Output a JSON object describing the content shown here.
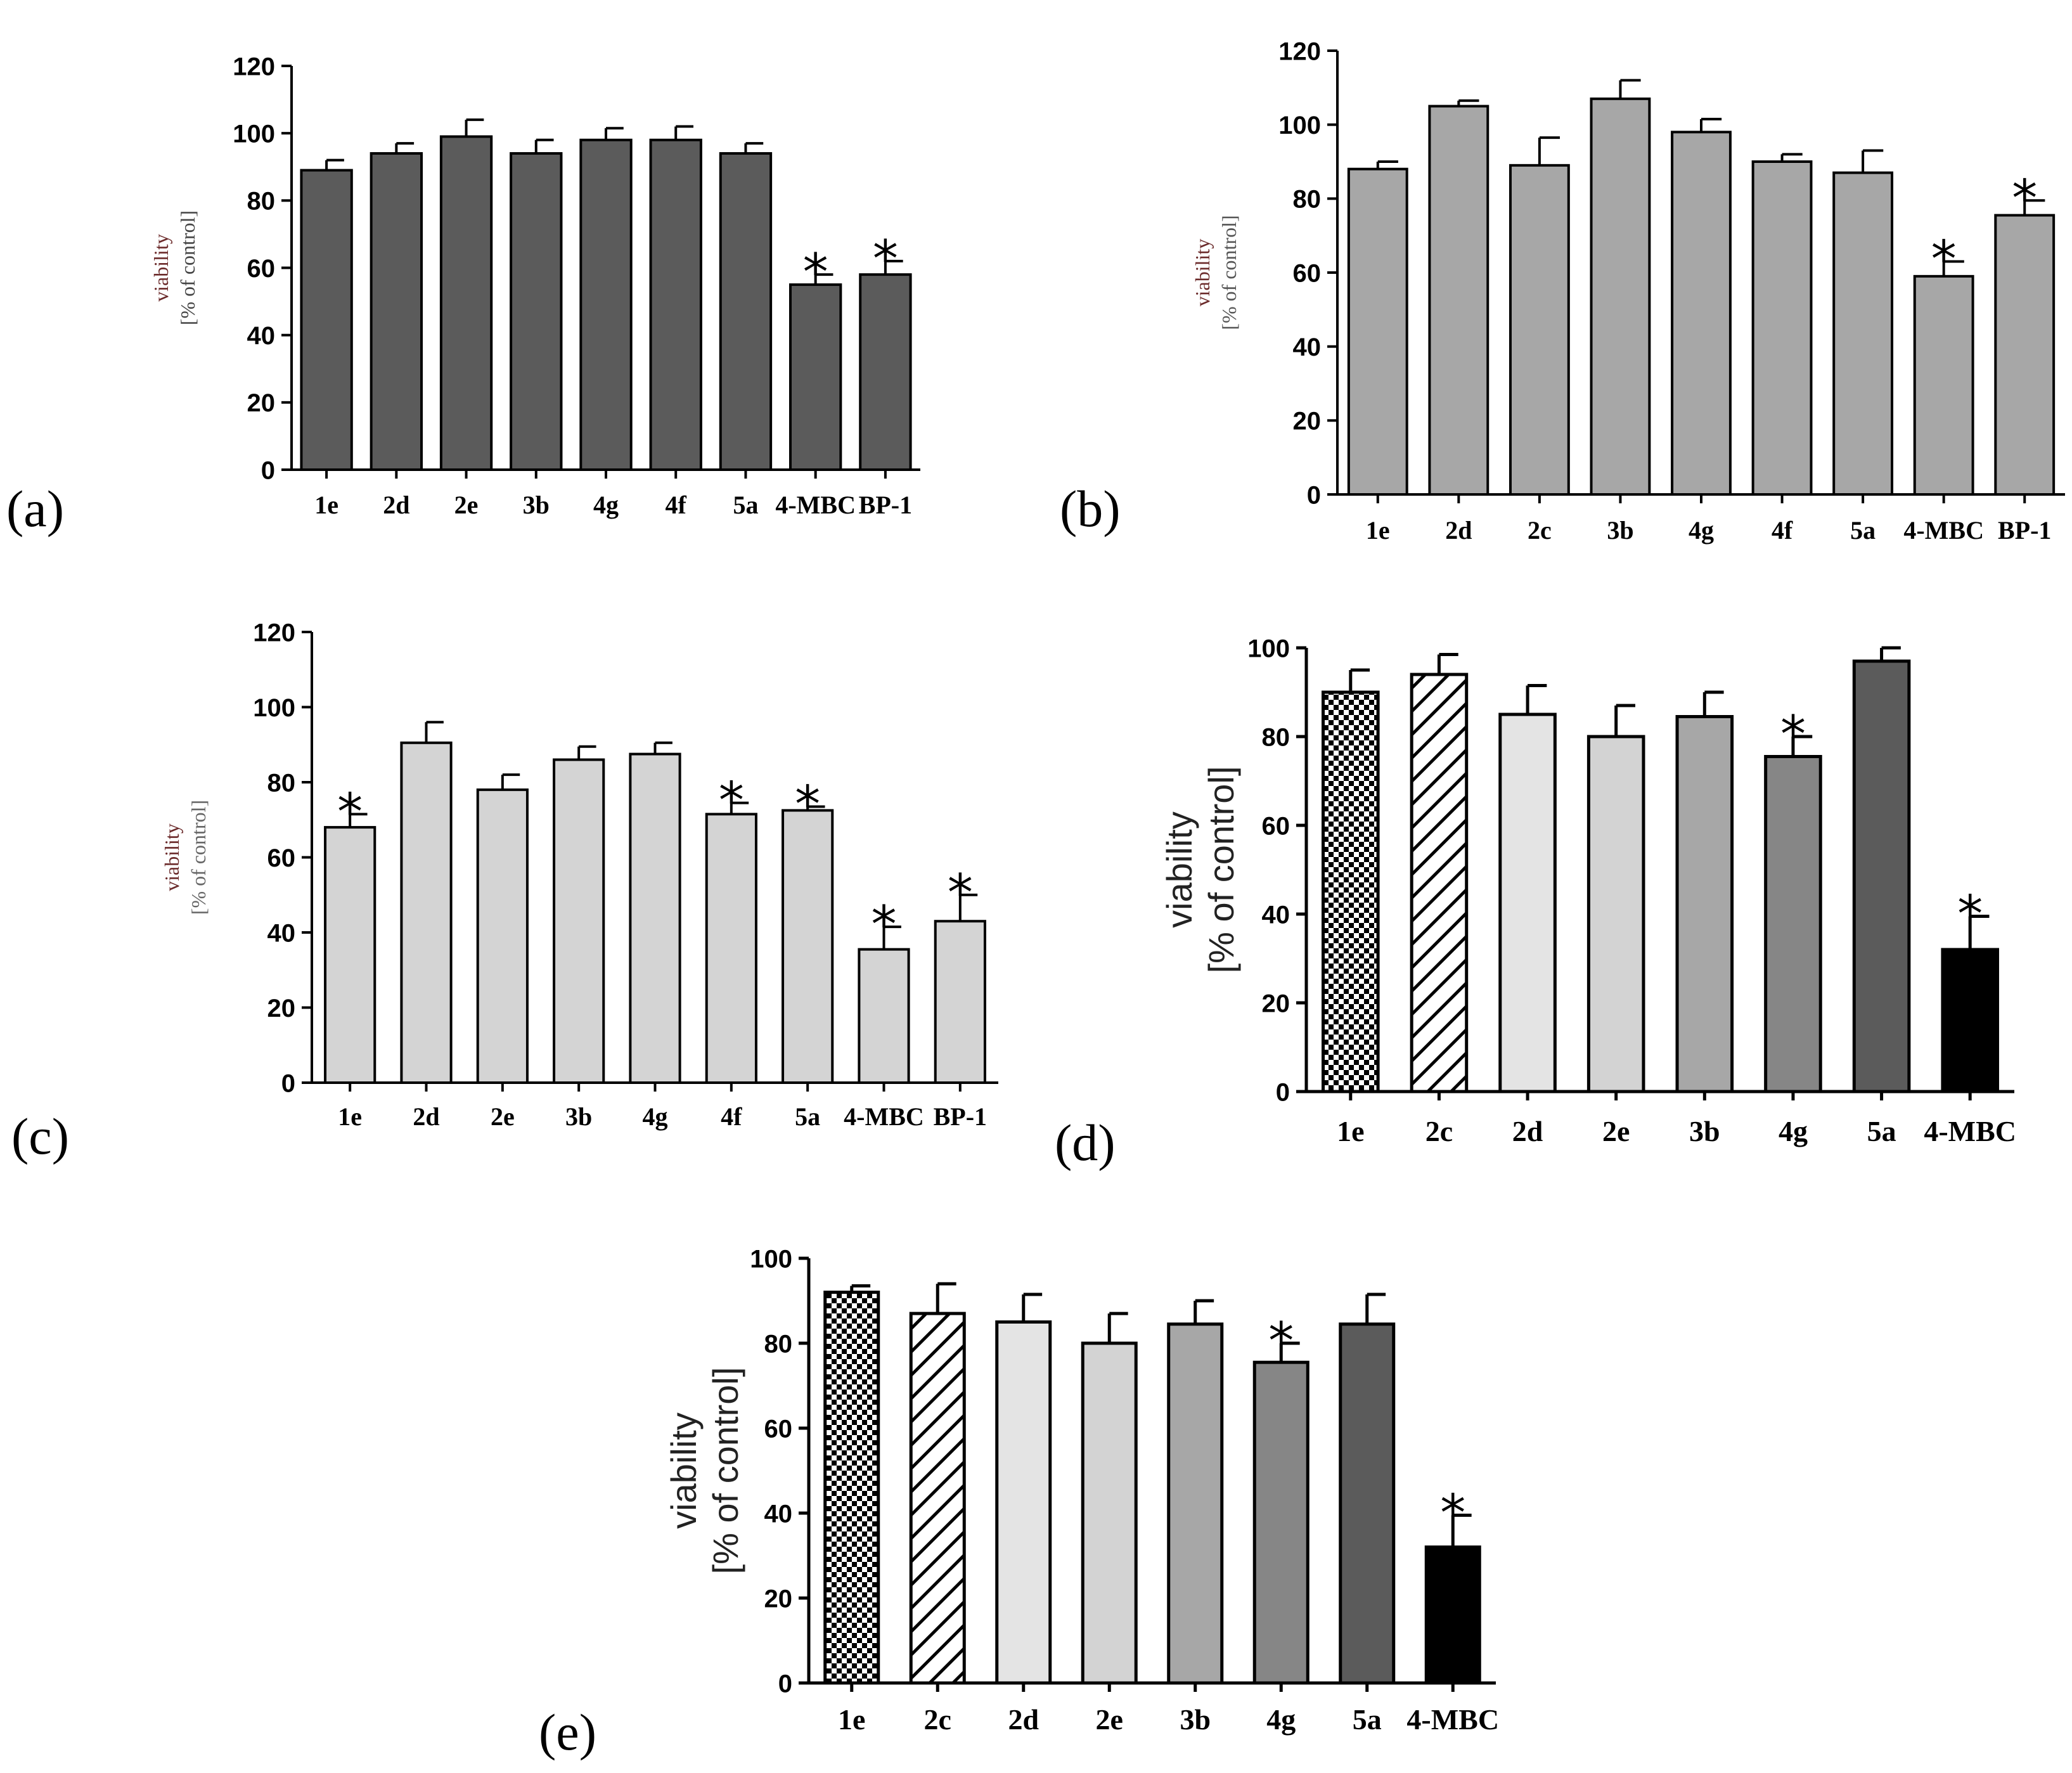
{
  "chart_data": [
    {
      "type": "bar",
      "panel_label": "(a)",
      "ylabel_line1": "viability",
      "ylabel_line2": "[% of control]",
      "ylim": [
        0,
        120
      ],
      "yticks": [
        0,
        20,
        40,
        60,
        80,
        100,
        120
      ],
      "categories": [
        "1e",
        "2d",
        "2e",
        "3b",
        "4g",
        "4f",
        "5a",
        "4-MBC",
        "BP-1"
      ],
      "values": [
        89,
        94,
        99,
        94,
        98,
        98,
        94,
        55,
        58
      ],
      "errors": [
        3,
        3,
        5,
        4,
        3.5,
        4,
        3,
        3,
        4
      ],
      "significant": [
        false,
        false,
        false,
        false,
        false,
        false,
        false,
        true,
        true
      ],
      "marker": "*",
      "bar_colors": [
        "#5b5b5b",
        "#5b5b5b",
        "#5b5b5b",
        "#5b5b5b",
        "#5b5b5b",
        "#5b5b5b",
        "#5b5b5b",
        "#5b5b5b",
        "#5b5b5b"
      ],
      "bar_patterns": [
        "solid",
        "solid",
        "solid",
        "solid",
        "solid",
        "solid",
        "solid",
        "solid",
        "solid"
      ]
    },
    {
      "type": "bar",
      "panel_label": "(b)",
      "ylabel_line1": "viability",
      "ylabel_line2": "[% of control]",
      "ylim": [
        0,
        120
      ],
      "yticks": [
        0,
        20,
        40,
        60,
        80,
        100,
        120
      ],
      "categories": [
        "1e",
        "2d",
        "2c",
        "3b",
        "4g",
        "4f",
        "5a",
        "4-MBC",
        "BP-1"
      ],
      "values": [
        88,
        105,
        89,
        107,
        98,
        90,
        87,
        59,
        75.5
      ],
      "errors": [
        2,
        1.5,
        7.5,
        5,
        3.5,
        2,
        6,
        4,
        4
      ],
      "significant": [
        false,
        false,
        false,
        false,
        false,
        false,
        false,
        true,
        true
      ],
      "marker": "*",
      "bar_colors": [
        "#a7a7a7",
        "#a7a7a7",
        "#a7a7a7",
        "#a7a7a7",
        "#a7a7a7",
        "#a7a7a7",
        "#a7a7a7",
        "#a7a7a7",
        "#a7a7a7"
      ],
      "bar_patterns": [
        "solid",
        "solid",
        "solid",
        "solid",
        "solid",
        "solid",
        "solid",
        "solid",
        "solid"
      ]
    },
    {
      "type": "bar",
      "panel_label": "(c)",
      "ylabel_line1": "viability",
      "ylabel_line2": "[% of control]",
      "ylim": [
        0,
        120
      ],
      "yticks": [
        0,
        20,
        40,
        60,
        80,
        100,
        120
      ],
      "categories": [
        "1e",
        "2d",
        "2e",
        "3b",
        "4g",
        "4f",
        "5a",
        "4-MBC",
        "BP-1"
      ],
      "values": [
        68,
        90.5,
        78,
        86,
        87.5,
        71.5,
        72.5,
        35.5,
        43
      ],
      "errors": [
        3.5,
        5.5,
        4,
        3.5,
        3,
        3,
        1,
        6,
        7
      ],
      "significant": [
        true,
        false,
        false,
        false,
        false,
        true,
        true,
        true,
        true
      ],
      "marker": "*",
      "bar_colors": [
        "#d4d4d4",
        "#d4d4d4",
        "#d4d4d4",
        "#d4d4d4",
        "#d4d4d4",
        "#d4d4d4",
        "#d4d4d4",
        "#d4d4d4",
        "#d4d4d4"
      ],
      "bar_patterns": [
        "solid",
        "solid",
        "solid",
        "solid",
        "solid",
        "solid",
        "solid",
        "solid",
        "solid"
      ]
    },
    {
      "type": "bar",
      "panel_label": "(d)",
      "ylabel_line1": "viability",
      "ylabel_line2": "[% of control]",
      "ylim": [
        0,
        100
      ],
      "yticks": [
        0,
        20,
        40,
        60,
        80,
        100
      ],
      "categories": [
        "1e",
        "2c",
        "2d",
        "2e",
        "3b",
        "4g",
        "5a",
        "4-MBC"
      ],
      "values": [
        90,
        94,
        85,
        80,
        84.5,
        75.5,
        97,
        32
      ],
      "errors": [
        5,
        4.5,
        6.5,
        7,
        5.5,
        4.5,
        3,
        7.5
      ],
      "significant": [
        false,
        false,
        false,
        false,
        false,
        true,
        false,
        true
      ],
      "marker": "*",
      "bar_colors": [
        "#000000",
        "#000000",
        "#e4e4e4",
        "#d3d3d3",
        "#a7a7a7",
        "#868686",
        "#5b5b5b",
        "#000000"
      ],
      "bar_patterns": [
        "checker",
        "diagonal",
        "solid",
        "solid",
        "solid",
        "solid",
        "solid",
        "solid"
      ]
    },
    {
      "type": "bar",
      "panel_label": "(e)",
      "ylabel_line1": "viability",
      "ylabel_line2": "[% of control]",
      "ylim": [
        0,
        100
      ],
      "yticks": [
        0,
        20,
        40,
        60,
        80,
        100
      ],
      "categories": [
        "1e",
        "2c",
        "2d",
        "2e",
        "3b",
        "4g",
        "5a",
        "4-MBC"
      ],
      "values": [
        92,
        87,
        85,
        80,
        84.5,
        75.5,
        84.5,
        32
      ],
      "errors": [
        1.5,
        7,
        6.5,
        7,
        5.5,
        4.5,
        7,
        7.5
      ],
      "significant": [
        false,
        false,
        false,
        false,
        false,
        true,
        false,
        true
      ],
      "marker": "*",
      "bar_colors": [
        "#000000",
        "#000000",
        "#e4e4e4",
        "#d3d3d3",
        "#a7a7a7",
        "#868686",
        "#5b5b5b",
        "#000000"
      ],
      "bar_patterns": [
        "checker",
        "diagonal",
        "solid",
        "solid",
        "solid",
        "solid",
        "solid",
        "solid"
      ]
    }
  ]
}
